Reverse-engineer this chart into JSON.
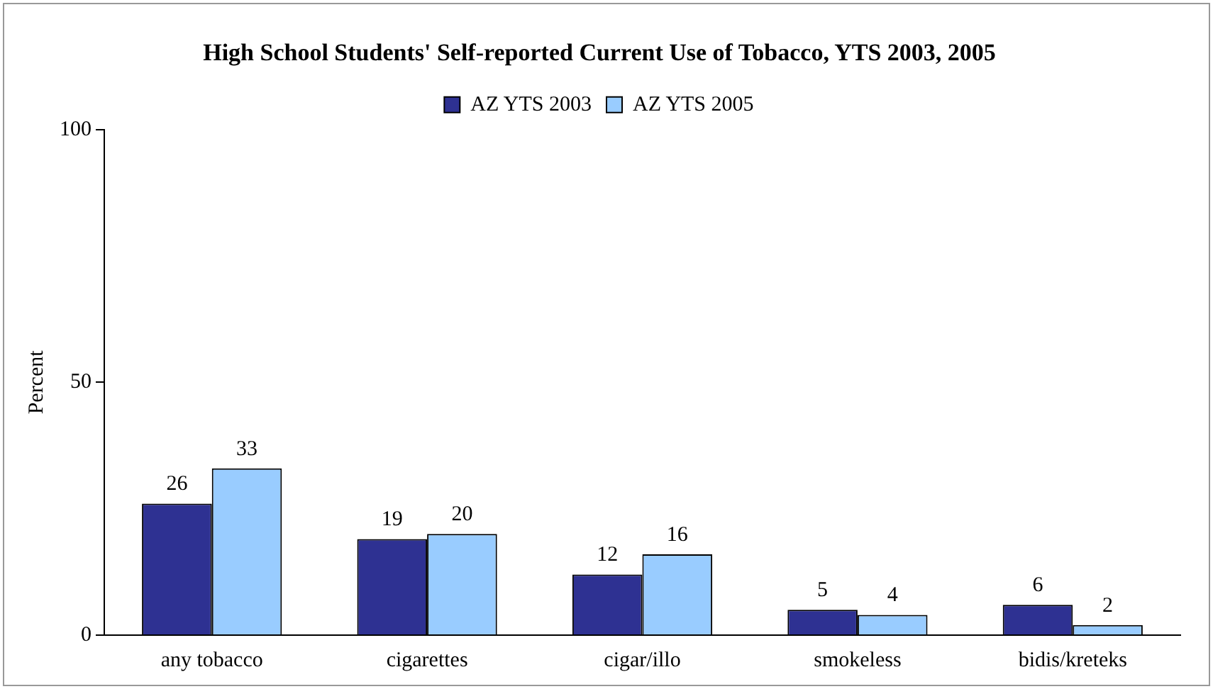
{
  "chart_data": {
    "type": "bar",
    "title": "High School Students' Self-reported Current Use of Tobacco, YTS 2003, 2005",
    "ylabel": "Percent",
    "categories": [
      "any tobacco",
      "cigarettes",
      "cigar/illo",
      "smokeless",
      "bidis/kreteks"
    ],
    "series": [
      {
        "name": "AZ YTS 2003",
        "color": "#2e3192",
        "values": [
          26,
          19,
          12,
          5,
          6
        ]
      },
      {
        "name": "AZ YTS 2005",
        "color": "#99ccff",
        "values": [
          33,
          20,
          16,
          4,
          2
        ]
      }
    ],
    "ylim": [
      0,
      100
    ],
    "yticks": [
      0,
      50,
      100
    ],
    "grid": false,
    "legend": "top",
    "data_labels": true
  }
}
